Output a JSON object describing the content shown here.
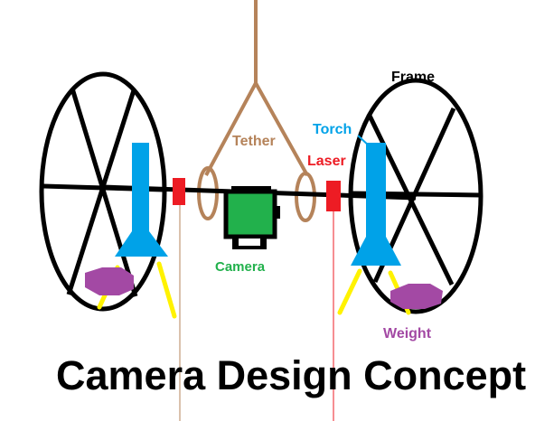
{
  "diagram": {
    "title": "Camera Design Concept",
    "labels": {
      "tether": "Tether",
      "laser": "Laser",
      "torch": "Torch",
      "frame": "Frame",
      "camera": "Camera",
      "weight": "Weight"
    },
    "colors": {
      "frame": "#000000",
      "tether": "#b5835a",
      "laser": "#ed1c24",
      "torch": "#00a2e8",
      "camera": "#22b14c",
      "weight": "#a349a4",
      "legs": "#fff200",
      "title": "#000000",
      "laser_beam": "#ed1c24"
    }
  }
}
